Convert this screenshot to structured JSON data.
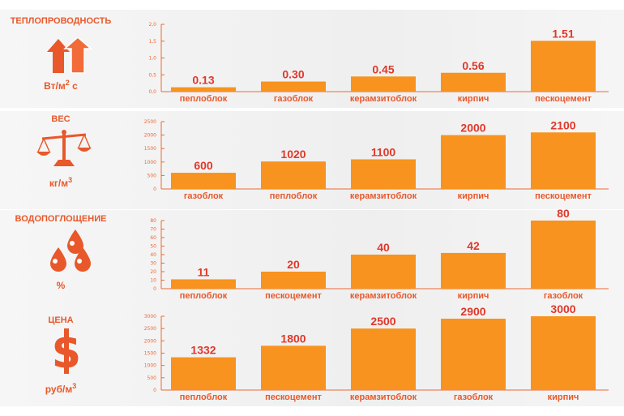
{
  "colors": {
    "bar": "#f7931e",
    "accent": "#e8582a",
    "value_label": "#e0382a",
    "axis": "#ea6a36"
  },
  "chart_data": [
    {
      "type": "bar",
      "title": "теплопроводность",
      "unit": {
        "base": "Вт/м",
        "sup": "2",
        "tail": " с"
      },
      "icon": "arrows-up-icon",
      "ylim": [
        0,
        2.0
      ],
      "yticks": [
        "0,0",
        "0,5",
        "1,0",
        "1,5",
        "2,0"
      ],
      "categories": [
        "пеплоблок",
        "газоблок",
        "керамзитоблок",
        "кирпич",
        "пескоцемент"
      ],
      "values": [
        0.13,
        0.3,
        0.45,
        0.56,
        1.51
      ],
      "value_labels": [
        "0.13",
        "0.30",
        "0.45",
        "0.56",
        "1.51"
      ]
    },
    {
      "type": "bar",
      "title": "вес",
      "unit": {
        "base": "кг/м",
        "sup": "3",
        "tail": ""
      },
      "icon": "scales-icon",
      "ylim": [
        0,
        2500
      ],
      "yticks": [
        "0",
        "500",
        "1000",
        "1500",
        "2000",
        "2500"
      ],
      "categories": [
        "газоблок",
        "пеплоблок",
        "керамзитоблок",
        "кирпич",
        "пескоцемент"
      ],
      "values": [
        600,
        1020,
        1100,
        2000,
        2100
      ],
      "value_labels": [
        "600",
        "1020",
        "1100",
        "2000",
        "2100"
      ]
    },
    {
      "type": "bar",
      "title": "водопоглощение",
      "unit": {
        "base": "%",
        "sup": "",
        "tail": ""
      },
      "icon": "water-drops-icon",
      "ylim": [
        0,
        80
      ],
      "yticks": [
        "0",
        "10",
        "20",
        "30",
        "40",
        "50",
        "60",
        "70",
        "80"
      ],
      "categories": [
        "пеплоблок",
        "пескоцемент",
        "керамзитоблок",
        "кирпич",
        "газоблок"
      ],
      "values": [
        11,
        20,
        40,
        42,
        80
      ],
      "value_labels": [
        "11",
        "20",
        "40",
        "42",
        "80"
      ]
    },
    {
      "type": "bar",
      "title": "цена",
      "unit": {
        "base": "руб/м",
        "sup": "3",
        "tail": ""
      },
      "icon": "dollar-icon",
      "ylim": [
        0,
        3000
      ],
      "yticks": [
        "0",
        "500",
        "1000",
        "1500",
        "2000",
        "2500",
        "3000"
      ],
      "categories": [
        "пеплоблок",
        "пескоцемент",
        "керамзитоблок",
        "газоблок",
        "кирпич"
      ],
      "values": [
        1332,
        1800,
        2500,
        2900,
        3000
      ],
      "value_labels": [
        "1332",
        "1800",
        "2500",
        "2900",
        "3000"
      ]
    }
  ]
}
